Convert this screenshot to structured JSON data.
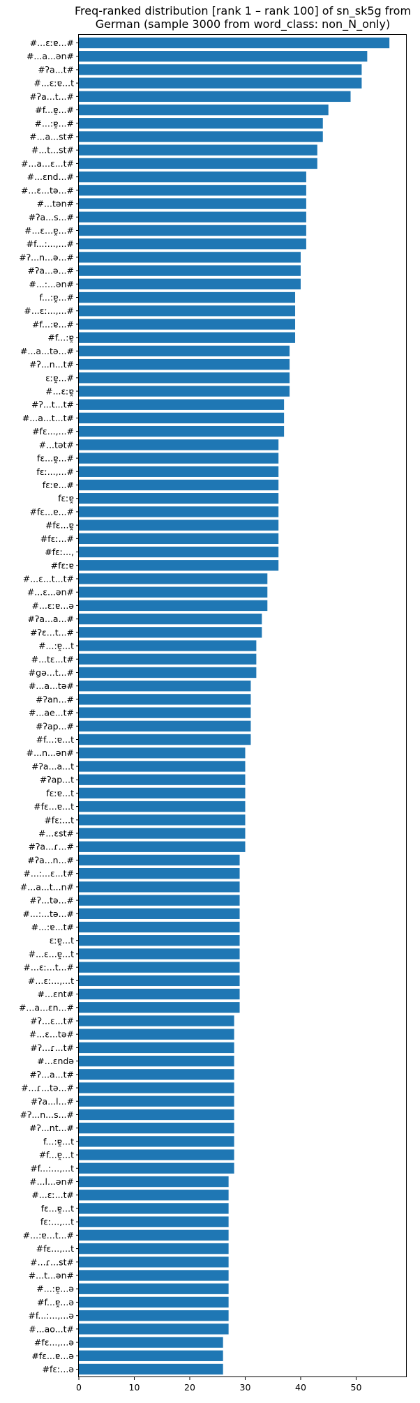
{
  "chart_data": {
    "type": "bar",
    "orientation": "horizontal",
    "title_lines": [
      "Freq-ranked distribution [rank 1 – rank 100] of sn_sk5g from",
      "German (sample 3000 from word_class: non_N_only)"
    ],
    "xlabel": "",
    "ylabel": "",
    "xlim": [
      0,
      59
    ],
    "xticks": [
      0,
      10,
      20,
      30,
      40,
      50
    ],
    "grid": false,
    "categories": [
      "#...ɛːɐ...#",
      "#...a...ən#",
      "#ʔa...t#",
      "#...ɛːɐ...t",
      "#ʔa...t...#",
      "#f...ɐ̯...#",
      "#...:ɐ̯...#",
      "#...a...st#",
      "#...t...st#",
      "#...a...ɛ...t#",
      "#...ɛnd...#",
      "#...ɛ...tə...#",
      "#...tən#",
      "#ʔa...s...#",
      "#...ɛ...ɐ̯...#",
      "#f...:...,...#",
      "#ʔ...n...ə...#",
      "#ʔa...ə...#",
      "#...:...ən#",
      "f...:ɐ̯...#",
      "#...ɛː...,...#",
      "#f...:ɐ...#",
      "#f...:ɐ̯",
      "#...a...tə...#",
      "#ʔ...n...t#",
      "ɛːɐ̯...#",
      "#...ɛːɐ̯",
      "#ʔ...t...t#",
      "#...a...t...t#",
      "#fɛ...,...#",
      "#...tət#",
      "fɛ...ɐ̯...#",
      "fɛː...,...#",
      "fɛːɐ...#",
      "fɛːɐ̯",
      "#fɛ...ɐ...#",
      "#fɛ...ɐ̯",
      "#fɛː...#",
      "#fɛː...,",
      "#fɛːɐ",
      "#...ɛ...t...t#",
      "#...ɛ...ən#",
      "#...ɛːɐ...ə",
      "#ʔa...a...#",
      "#ʔɛ...t...#",
      "#...:ɐ̯...t",
      "#...tɛ...t#",
      "#gə...t...#",
      "#...a...tə#",
      "#ʔan...#",
      "#...ae...t#",
      "#ʔap...#",
      "#f...:ɐ...t",
      "#...n...ən#",
      "#ʔa...a...t",
      "#ʔap...t",
      "fɛːɐ...t",
      "#fɛ...ɐ...t",
      "#fɛː...t",
      "#...ɛst#",
      "#ʔa...ɾ...#",
      "#ʔa...n...#",
      "#...:...ɛ...t#",
      "#...a...t...n#",
      "#ʔ...tə...#",
      "#...:...tə...#",
      "#...:ɐ...t#",
      "ɛːɐ̯...t",
      "#...ɛ...ɐ̯...t",
      "#...ɛː...t...#",
      "#...ɛː...,...t",
      "#...ɛnt#",
      "#...a...ɛn...#",
      "#ʔ...ɛ...t#",
      "#...ɛ...tə#",
      "#ʔ...ɾ...t#",
      "#...ɛndə",
      "#ʔ...a...t#",
      "#...ɾ...tə...#",
      "#ʔa...l...#",
      "#ʔ...n...s...#",
      "#ʔ...nt...#",
      "f...:ɐ̯...t",
      "#f...ɐ̯...t",
      "#f...:...,...t",
      "#...l...ən#",
      "#...ɛː...t#",
      "fɛ...ɐ̯...t",
      "fɛː...,...t",
      "#...:ɐ...t...#",
      "#fɛ...,...t",
      "#...ɾ...st#",
      "#...t...ən#",
      "#...:ɐ̯...ə",
      "#f...ɐ̯...ə",
      "#f...:...,...ə",
      "#...ao...t#",
      "#fɛ...,...ə",
      "#fɛ...ɐ...ə",
      "#fɛː...ə"
    ],
    "values": [
      56,
      52,
      51,
      51,
      49,
      45,
      44,
      44,
      43,
      43,
      41,
      41,
      41,
      41,
      41,
      41,
      40,
      40,
      40,
      39,
      39,
      39,
      39,
      38,
      38,
      38,
      38,
      37,
      37,
      37,
      36,
      36,
      36,
      36,
      36,
      36,
      36,
      36,
      36,
      36,
      34,
      34,
      34,
      33,
      33,
      32,
      32,
      32,
      31,
      31,
      31,
      31,
      31,
      30,
      30,
      30,
      30,
      30,
      30,
      30,
      30,
      29,
      29,
      29,
      29,
      29,
      29,
      29,
      29,
      29,
      29,
      29,
      29,
      28,
      28,
      28,
      28,
      28,
      28,
      28,
      28,
      28,
      28,
      28,
      28,
      27,
      27,
      27,
      27,
      27,
      27,
      27,
      27,
      27,
      27,
      27,
      27,
      26,
      26,
      26
    ],
    "bar_color": "#1f77b4"
  }
}
